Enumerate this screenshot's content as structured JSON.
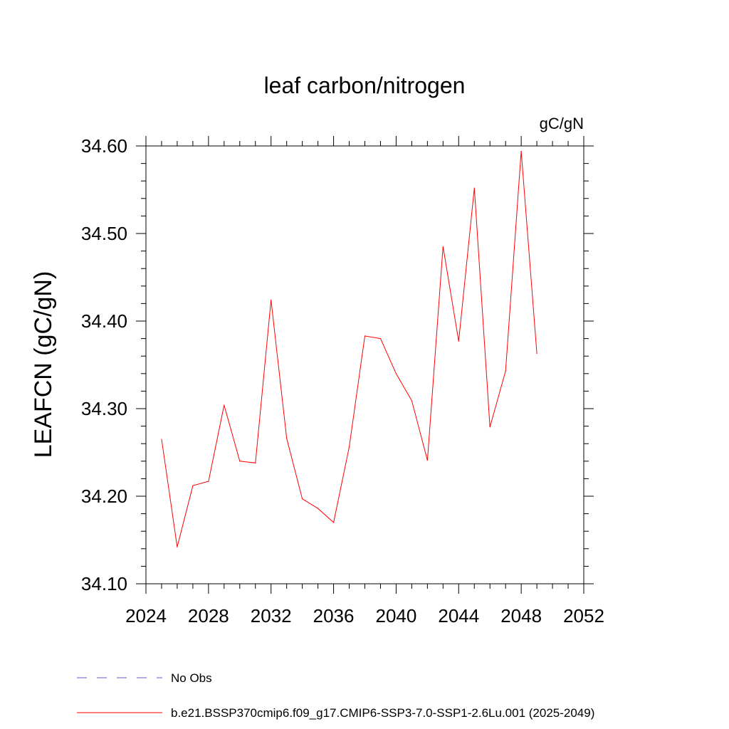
{
  "chart_data": {
    "type": "line",
    "title": "leaf carbon/nitrogen",
    "units": "gC/gN",
    "ylabel": "LEAFCN  (gC/gN)",
    "xlabel": "",
    "xlim": [
      2024,
      2052
    ],
    "ylim": [
      34.1,
      34.6
    ],
    "x_ticks": [
      2024,
      2028,
      2032,
      2036,
      2040,
      2044,
      2048,
      2052
    ],
    "x_tick_labels": [
      "2024",
      "2028",
      "2032",
      "2036",
      "2040",
      "2044",
      "2048",
      "2052"
    ],
    "y_ticks": [
      34.1,
      34.2,
      34.3,
      34.4,
      34.5,
      34.6
    ],
    "y_tick_labels": [
      "34.10",
      "34.20",
      "34.30",
      "34.40",
      "34.50",
      "34.60"
    ],
    "grid": false,
    "series": [
      {
        "name": "b.e21.BSSP370cmip6.f09_g17.CMIP6-SSP3-7.0-SSP1-2.6Lu.001 (2025-2049)",
        "color": "#ff0000",
        "x": [
          2025,
          2026,
          2027,
          2028,
          2029,
          2030,
          2031,
          2032,
          2033,
          2034,
          2035,
          2036,
          2037,
          2038,
          2039,
          2040,
          2041,
          2042,
          2043,
          2044,
          2045,
          2046,
          2047,
          2048,
          2049
        ],
        "values": [
          34.265,
          34.142,
          34.212,
          34.217,
          34.304,
          34.24,
          34.238,
          34.424,
          34.266,
          34.197,
          34.186,
          34.17,
          34.256,
          34.383,
          34.38,
          34.34,
          34.309,
          34.241,
          34.485,
          34.377,
          34.552,
          34.279,
          34.343,
          34.594,
          34.363
        ]
      }
    ],
    "legend": [
      {
        "label": "No Obs",
        "color": "#6a5acd",
        "style": "dashed"
      },
      {
        "label": "b.e21.BSSP370cmip6.f09_g17.CMIP6-SSP3-7.0-SSP1-2.6Lu.001 (2025-2049)",
        "color": "#ff0000",
        "style": "solid"
      }
    ],
    "legend_position": "bottom"
  }
}
